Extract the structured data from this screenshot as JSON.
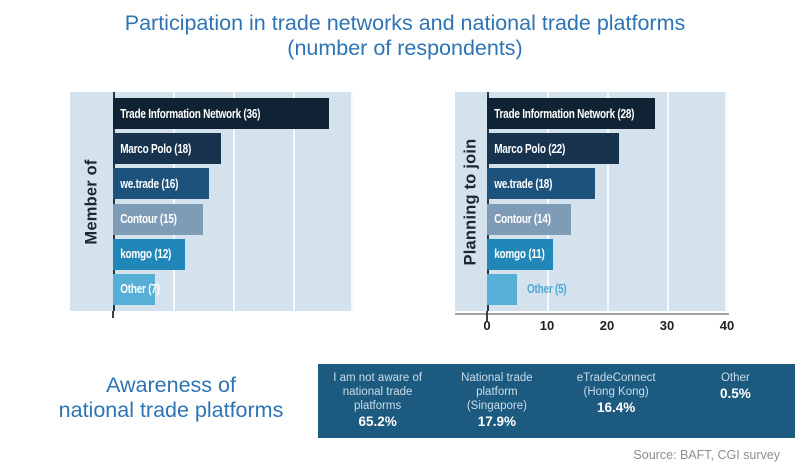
{
  "title": {
    "line1": "Participation in trade networks and national trade platforms",
    "line2": "(number of respondents)"
  },
  "colors": {
    "title_blue": "#2E74B5",
    "plot_background": "#D3E2EC",
    "gridline": "#FFFFFF",
    "x_axis_line": "#9FA3A7",
    "awareness_box": "#1D5A7F",
    "source_text": "#8E8E8E"
  },
  "chart_data": [
    {
      "type": "bar",
      "orientation": "horizontal",
      "group_label": "Member of",
      "categories": [
        "Trade Information Network",
        "Marco Polo",
        "we.trade",
        "Contour",
        "komgo",
        "Other"
      ],
      "values": [
        36,
        18,
        16,
        15,
        12,
        7
      ],
      "bar_labels": [
        "Trade Information Network (36)",
        "Marco Polo (18)",
        "we.trade (16)",
        "Contour (15)",
        "komgo (12)",
        "Other (7)"
      ],
      "bar_colors": [
        "#0F2334",
        "#17334E",
        "#1D527C",
        "#7F9CB7",
        "#2187B8",
        "#55AFD6"
      ],
      "xlim": [
        0,
        40
      ],
      "x_ticks": [
        0,
        10,
        20,
        30,
        40
      ],
      "x_tick_labels_visible": false,
      "grid": true,
      "outside_label_index": -1
    },
    {
      "type": "bar",
      "orientation": "horizontal",
      "group_label": "Planning to join",
      "categories": [
        "Trade Information Network",
        "Marco Polo",
        "we.trade",
        "Contour",
        "komgo",
        "Other"
      ],
      "values": [
        28,
        22,
        18,
        14,
        11,
        5
      ],
      "bar_labels": [
        "Trade Information Network (28)",
        "Marco Polo (22)",
        "we.trade (18)",
        "Contour (14)",
        "komgo (11)",
        "Other (5)"
      ],
      "bar_colors": [
        "#0F2334",
        "#17334E",
        "#1D527C",
        "#7F9CB7",
        "#2187B8",
        "#55AFD6"
      ],
      "xlim": [
        0,
        40
      ],
      "x_ticks": [
        0,
        10,
        20,
        30,
        40
      ],
      "x_tick_labels_visible": true,
      "grid": true,
      "outside_label_index": 5,
      "outside_label_color": "#4FA9D1"
    },
    {
      "type": "table",
      "title": "Awareness of national trade platforms",
      "categories": [
        "I am not aware of national trade platforms",
        "National trade platform (Singapore)",
        "eTradeConnect (Hong Kong)",
        "Other"
      ],
      "values_pct": [
        65.2,
        17.9,
        16.4,
        0.5
      ]
    }
  ],
  "awareness": {
    "title_line1": "Awareness of",
    "title_line2": "national trade platforms",
    "columns": [
      {
        "lines": [
          "I am not aware of",
          "national trade",
          "platforms"
        ],
        "pct": "65.2%"
      },
      {
        "lines": [
          "National trade",
          "platform",
          "(Singapore)"
        ],
        "pct": "17.9%"
      },
      {
        "lines": [
          "eTradeConnect",
          "(Hong Kong)"
        ],
        "pct": "16.4%"
      },
      {
        "lines": [
          "Other"
        ],
        "pct": "0.5%"
      }
    ]
  },
  "source": "Source: BAFT, CGI survey"
}
